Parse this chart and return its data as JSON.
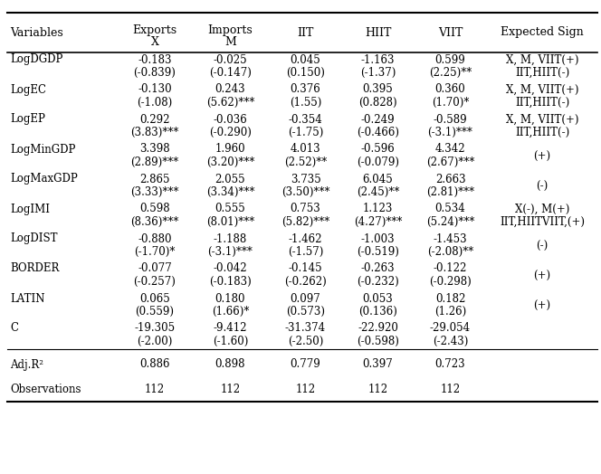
{
  "columns": [
    "Variables",
    "Exports\nX",
    "Imports\nM",
    "IIT",
    "HIIT",
    "VIIT",
    "Expected Sign"
  ],
  "rows": [
    {
      "var": "LogDGDP",
      "vals": [
        "-0.183",
        "-0.025",
        "0.045",
        "-1.163",
        "0.599",
        "X, M, VIIT(+)"
      ],
      "tstats": [
        "(-0.839)",
        "(-0.147)",
        "(0.150)",
        "(-1.37)",
        "(2.25)**",
        "IIT,HIIT(-)"
      ]
    },
    {
      "var": "LogEC",
      "vals": [
        "-0.130",
        "0.243",
        "0.376",
        "0.395",
        "0.360",
        "X, M, VIIT(+)"
      ],
      "tstats": [
        "(-1.08)",
        "(5.62)***",
        "(1.55)",
        "(0.828)",
        "(1.70)*",
        "IIT,HIIT(-)"
      ]
    },
    {
      "var": "LogEP",
      "vals": [
        "0.292",
        "-0.036",
        "-0.354",
        "-0.249",
        "-0.589",
        "X, M, VIIT(+)"
      ],
      "tstats": [
        "(3.83)***",
        "(-0.290)",
        "(-1.75)",
        "(-0.466)",
        "(-3.1)***",
        "IIT,HIIT(-)"
      ]
    },
    {
      "var": "LogMinGDP",
      "vals": [
        "3.398",
        "1.960",
        "4.013",
        "-0.596",
        "4.342",
        "(+)"
      ],
      "tstats": [
        "(2.89)***",
        "(3.20)***",
        "(2.52)**",
        "(-0.079)",
        "(2.67)***",
        ""
      ]
    },
    {
      "var": "LogMaxGDP",
      "vals": [
        "2.865",
        "2.055",
        "3.735",
        "6.045",
        "2.663",
        "(-)"
      ],
      "tstats": [
        "(3.33)***",
        "(3.34)***",
        "(3.50)***",
        "(2.45)**",
        "(2.81)***",
        ""
      ]
    },
    {
      "var": "LogIMI",
      "vals": [
        "0.598",
        "0.555",
        "0.753",
        "1.123",
        "0.534",
        "X(-), M(+)"
      ],
      "tstats": [
        "(8.36)***",
        "(8.01)***",
        "(5.82)***",
        "(4.27)***",
        "(5.24)***",
        "IIT,HIITVIIT,(+)"
      ]
    },
    {
      "var": "LogDIST",
      "vals": [
        "-0.880",
        "-1.188",
        "-1.462",
        "-1.003",
        "-1.453",
        "(-)"
      ],
      "tstats": [
        "(-1.70)*",
        "(-3.1)***",
        "(-1.57)",
        "(-0.519)",
        "(-2.08)**",
        ""
      ]
    },
    {
      "var": "BORDER",
      "vals": [
        "-0.077",
        "-0.042",
        "-0.145",
        "-0.263",
        "-0.122",
        "(+)"
      ],
      "tstats": [
        "(-0.257)",
        "(-0.183)",
        "(-0.262)",
        "(-0.232)",
        "(-0.298)",
        ""
      ]
    },
    {
      "var": "LATIN",
      "vals": [
        "0.065",
        "0.180",
        "0.097",
        "0.053",
        "0.182",
        "(+)"
      ],
      "tstats": [
        "(0.559)",
        "(1.66)*",
        "(0.573)",
        "(0.136)",
        "(1.26)",
        ""
      ]
    },
    {
      "var": "C",
      "vals": [
        "-19.305",
        "-9.412",
        "-31.374",
        "-22.920",
        "-29.054",
        ""
      ],
      "tstats": [
        "(-2.00)",
        "(-1.60)",
        "(-2.50)",
        "(-0.598)",
        "(-2.43)",
        ""
      ]
    },
    {
      "var": "Adj.R²",
      "vals": [
        "0.886",
        "0.898",
        "0.779",
        "0.397",
        "0.723",
        ""
      ],
      "tstats": [
        "",
        "",
        "",
        "",
        "",
        ""
      ]
    },
    {
      "var": "Observations",
      "vals": [
        "112",
        "112",
        "112",
        "112",
        "112",
        ""
      ],
      "tstats": [
        "",
        "",
        "",
        "",
        "",
        ""
      ]
    }
  ],
  "bg_color": "#ffffff",
  "text_color": "#000000",
  "font_size": 8.5,
  "header_font_size": 9.0
}
